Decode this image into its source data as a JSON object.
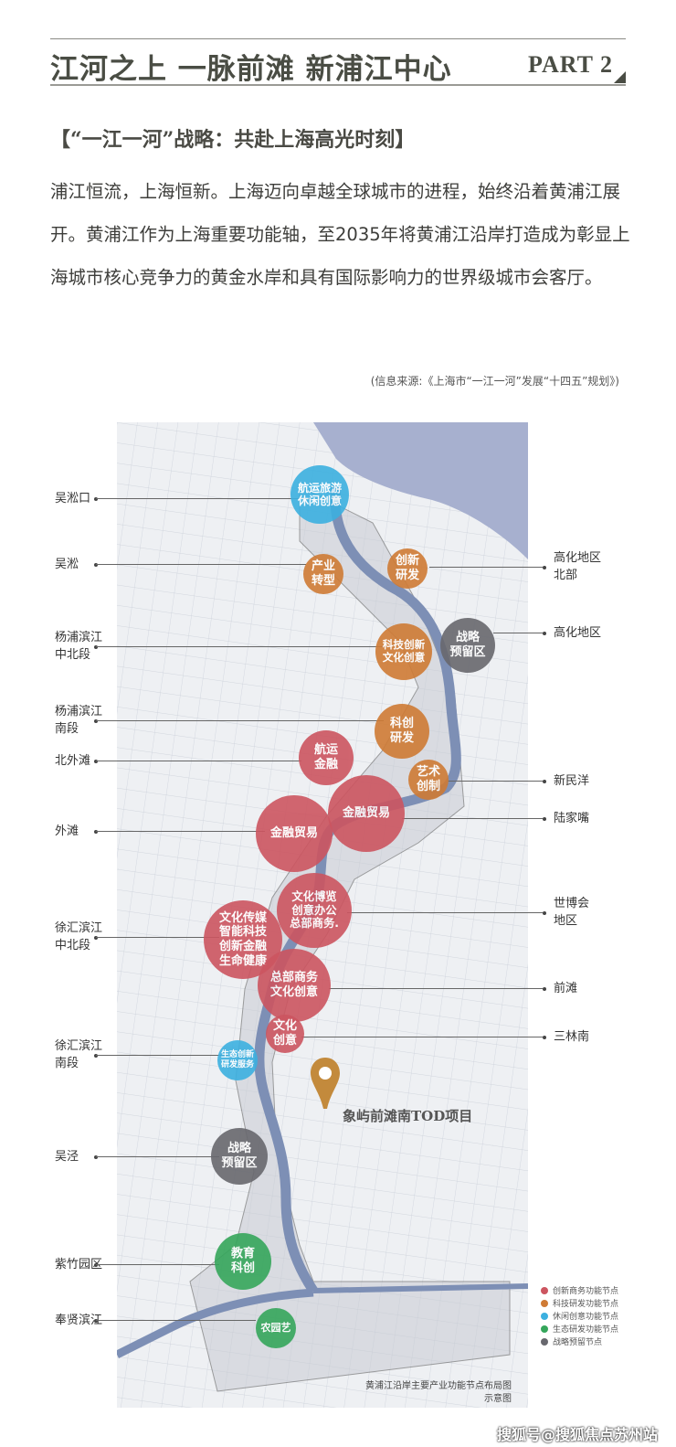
{
  "header": {
    "title": "江河之上 一脉前滩 新浦江中心",
    "part": "PART 2"
  },
  "subhead": "【“一江一河”战略：共赴上海高光时刻】",
  "paragraph": "浦江恒流，上海恒新。上海迈向卓越全球城市的进程，始终沿着黄浦江展开。黄浦江作为上海重要功能轴，至2035年将黄浦江沿岸打造成为彰显上海城市核心竞争力的黄金水岸和具有国际影响力的世界级城市会客厅。",
  "source": "(信息来源:《上海市“一江一河”发展“十四五”规划》)",
  "map": {
    "left_labels": [
      "吴淞口",
      "吴淞",
      "杨浦滨江\n中北段",
      "杨浦滨江\n南段",
      "北外滩",
      "外滩",
      "徐汇滨江\n中北段",
      "徐汇滨江\n南段",
      "吴泾",
      "紫竹园区",
      "奉贤滨江"
    ],
    "right_labels": [
      "高化地区\n北部",
      "高化地区",
      "新民洋",
      "陆家嘴",
      "世博会\n地区",
      "前滩",
      "三林南"
    ],
    "nodes": [
      {
        "text": "航运旅游\n休闲创意",
        "type": "leisure"
      },
      {
        "text": "产业\n转型",
        "type": "tech"
      },
      {
        "text": "创新\n研发",
        "type": "tech"
      },
      {
        "text": "战略\n预留区",
        "type": "reserve"
      },
      {
        "text": "科技创新\n文化创意",
        "type": "tech"
      },
      {
        "text": "科创\n研发",
        "type": "tech"
      },
      {
        "text": "航运\n金融",
        "type": "business"
      },
      {
        "text": "艺术\n创制",
        "type": "tech"
      },
      {
        "text": "金融贸易",
        "type": "business"
      },
      {
        "text": "金融贸易",
        "type": "business"
      },
      {
        "text": "文化博览\n创意办公\n总部商务.",
        "type": "business"
      },
      {
        "text": "文化传媒\n智能科技\n创新金融\n生命健康",
        "type": "business"
      },
      {
        "text": "总部商务\n文化创意",
        "type": "business"
      },
      {
        "text": "文化\n创意",
        "type": "business"
      },
      {
        "text": "生态创新\n研发服务",
        "type": "leisure"
      },
      {
        "text": "战略\n预留区",
        "type": "reserve"
      },
      {
        "text": "教育\n科创",
        "type": "eco"
      },
      {
        "text": "农园艺",
        "type": "eco"
      }
    ],
    "pin_icon": "location-pin-icon",
    "pin_label": "象屿前滩南TOD项目",
    "legend": [
      {
        "label": "创新商务功能节点",
        "type": "business"
      },
      {
        "label": "科技研发功能节点",
        "type": "tech"
      },
      {
        "label": "休闲创意功能节点",
        "type": "leisure"
      },
      {
        "label": "生态研发功能节点",
        "type": "eco"
      },
      {
        "label": "战略预留节点",
        "type": "reserve"
      }
    ],
    "caption_line1": "黄浦江沿岸主要产业功能节点布局图",
    "caption_line2": "示意图",
    "colors": {
      "business": "#cc5560",
      "tech": "#cf7b35",
      "leisure": "#3cb0e0",
      "eco": "#35a65b",
      "reserve": "#68686e",
      "river": "#7d8fb5",
      "sea": "#a7b0cf"
    }
  },
  "watermark": "搜狐号@搜狐焦点苏州站"
}
